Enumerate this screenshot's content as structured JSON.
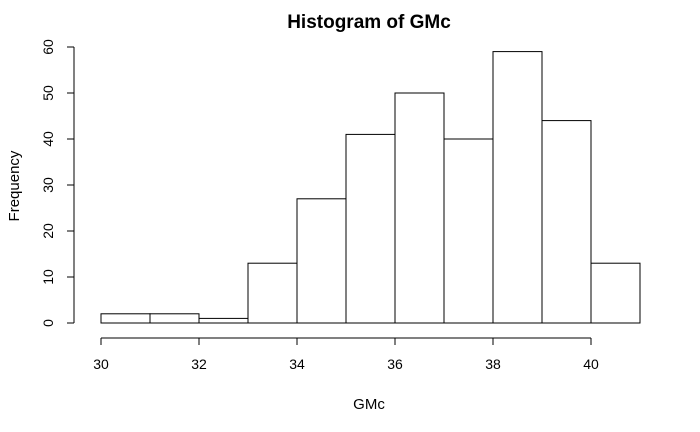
{
  "chart_data": {
    "type": "bar",
    "title": "Histogram of GMc",
    "xlabel": "GMc",
    "ylabel": "Frequency",
    "bins": [
      {
        "start": 30,
        "end": 31,
        "count": 2
      },
      {
        "start": 31,
        "end": 32,
        "count": 2
      },
      {
        "start": 32,
        "end": 33,
        "count": 1
      },
      {
        "start": 33,
        "end": 34,
        "count": 13
      },
      {
        "start": 34,
        "end": 35,
        "count": 27
      },
      {
        "start": 35,
        "end": 36,
        "count": 41
      },
      {
        "start": 36,
        "end": 37,
        "count": 50
      },
      {
        "start": 37,
        "end": 38,
        "count": 40
      },
      {
        "start": 38,
        "end": 39,
        "count": 59
      },
      {
        "start": 39,
        "end": 40,
        "count": 44
      },
      {
        "start": 40,
        "end": 41,
        "count": 13
      }
    ],
    "xlim": [
      30,
      41
    ],
    "ylim": [
      0,
      60
    ],
    "x_ticks": [
      30,
      32,
      34,
      36,
      38,
      40
    ],
    "y_ticks": [
      0,
      10,
      20,
      30,
      40,
      50,
      60
    ],
    "grid": false,
    "bar_fill": "#ffffff",
    "bar_stroke": "#000000"
  }
}
